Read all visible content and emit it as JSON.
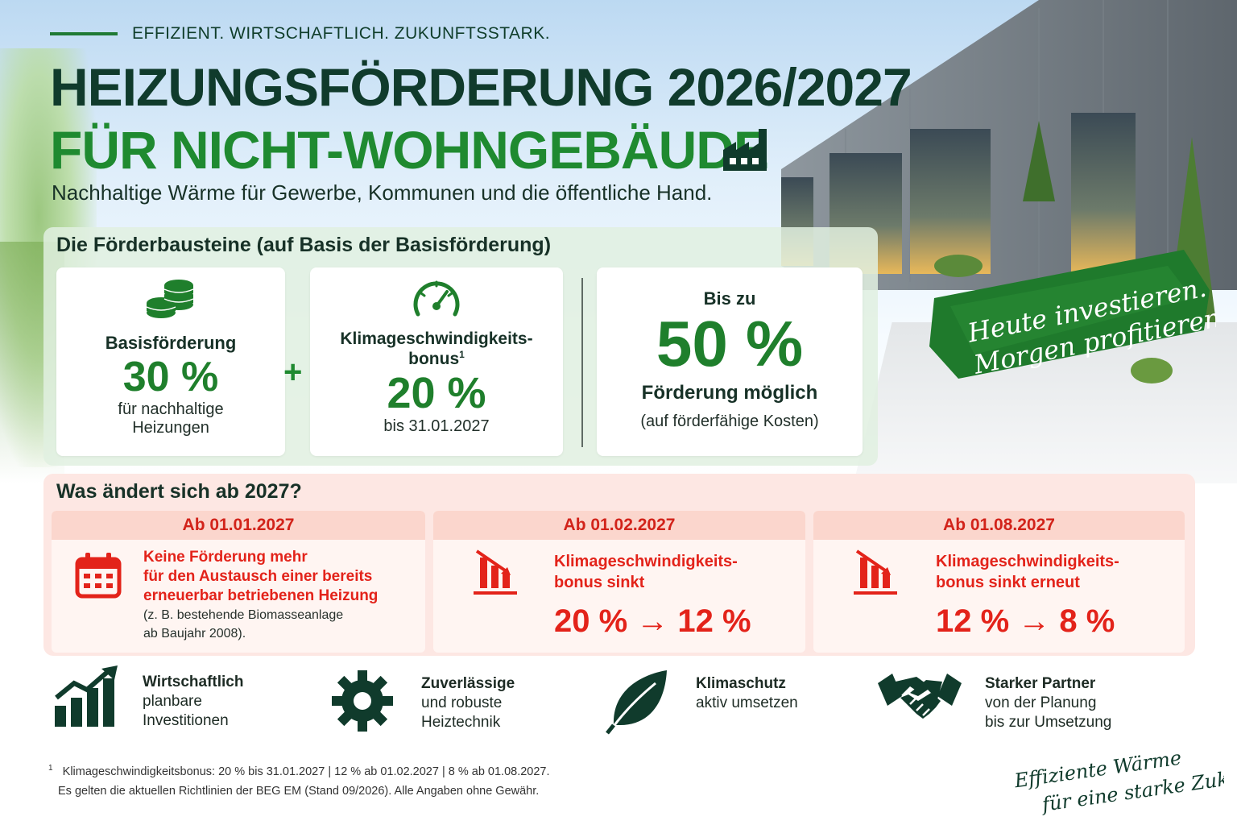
{
  "header": {
    "tagline": "EFFIZIENT. WIRTSCHAFTLICH. ZUKUNFTSSTARK.",
    "title_line1": "HEIZUNGSFÖRDERUNG 2026/2027",
    "title_line2": "FÜR NICHT-WOHNGEBÄUDE",
    "subtitle": "Nachhaltige Wärme für Gewerbe, Kommunen und die öffentliche Hand."
  },
  "banner": {
    "line1": "Heute investieren.",
    "line2": "Morgen profitieren."
  },
  "foerderung": {
    "title": "Die Förderbausteine (auf Basis der Basisförderung)",
    "basis": {
      "label": "Basisförderung",
      "value": "30 %",
      "desc1": "für nachhaltige",
      "desc2": "Heizungen"
    },
    "plus": "+",
    "klima": {
      "label1": "Klimageschwindigkeits-",
      "label2": "bonus",
      "sup": "1",
      "value": "20 %",
      "desc": "bis 31.01.2027"
    },
    "total": {
      "prefix": "Bis zu",
      "value": "50 %",
      "label": "Förderung möglich",
      "desc": "(auf förderfähige Kosten)"
    }
  },
  "changes": {
    "title": "Was ändert sich ab 2027?",
    "items": [
      {
        "date": "Ab 01.01.2027",
        "line1": "Keine Förderung mehr",
        "line2": "für den Austausch einer bereits",
        "line3": "erneuerbar betriebenen Heizung",
        "note1": "(z. B. bestehende Biomasseanlage",
        "note2": "ab Baujahr 2008)."
      },
      {
        "date": "Ab 01.02.2027",
        "line1": "Klimageschwindigkeits-",
        "line2": "bonus sinkt",
        "change": "20 % → 12 %"
      },
      {
        "date": "Ab 01.08.2027",
        "line1": "Klimageschwindigkeits-",
        "line2": "bonus sinkt erneut",
        "change": "12 % → 8 %"
      }
    ]
  },
  "features": [
    {
      "bold": "Wirtschaftlich",
      "line2": "planbare",
      "line3": "Investitionen"
    },
    {
      "bold": "Zuverlässige",
      "line2": "und robuste",
      "line3": "Heiztechnik"
    },
    {
      "bold": "Klimaschutz",
      "line2": "aktiv umsetzen",
      "line3": ""
    },
    {
      "bold": "Starker Partner",
      "line2": "von der Planung",
      "line3": "bis zur Umsetzung"
    }
  ],
  "footnote": {
    "mark": "1",
    "line1": "Klimageschwindigkeitsbonus: 20 % bis 31.01.2027 | 12 % ab 01.02.2027 | 8 % ab 01.08.2027.",
    "line2": "Es gelten die aktuellen Richtlinien der BEG EM (Stand 09/2026). Alle Angaben ohne Gewähr."
  },
  "slogan": {
    "line1": "Effiziente Wärme",
    "line2": "für eine starke Zukunft."
  },
  "colors": {
    "dark_green": "#103b2c",
    "green": "#1f8a30",
    "red": "#e3231a",
    "pink_bg": "#fde7e3",
    "light_green_bg": "#e0f0e0"
  }
}
